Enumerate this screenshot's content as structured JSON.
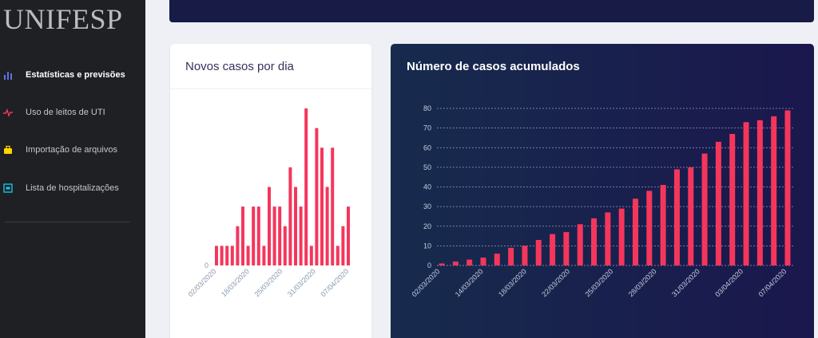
{
  "sidebar": {
    "brand": "UNIFESP",
    "items": [
      {
        "label": "Estatísticas e previsões",
        "icon": "bar-chart-icon",
        "color": "#5e72e4",
        "active": true
      },
      {
        "label": "Uso de leitos de UTI",
        "icon": "pulse-icon",
        "color": "#f5365c",
        "active": false
      },
      {
        "label": "Importação de arquivos",
        "icon": "briefcase-icon",
        "color": "#ffd600",
        "active": false
      },
      {
        "label": "Lista de hospitalizações",
        "icon": "list-icon",
        "color": "#11cdef",
        "active": false
      }
    ]
  },
  "colors": {
    "bar": "#f5365c",
    "dark_card": "#172b4d"
  },
  "charts": {
    "daily": {
      "title": "Novos casos por dia",
      "chart_data": {
        "type": "bar",
        "categories_shown": [
          "02/03/2020",
          "18/03/2020",
          "25/03/2020",
          "31/03/2020",
          "07/04/2020"
        ],
        "values": [
          1,
          1,
          1,
          1,
          2,
          3,
          1,
          3,
          3,
          1,
          4,
          3,
          3,
          2,
          5,
          4,
          3,
          8,
          1,
          7,
          6,
          4,
          6,
          1,
          2,
          3
        ],
        "ylim": [
          0,
          8
        ],
        "y_ticks": [
          "0"
        ]
      }
    },
    "cumulative": {
      "title": "Número de casos acumulados",
      "chart_data": {
        "type": "bar",
        "categories_shown": [
          "02/03/2020",
          "14/03/2020",
          "18/03/2020",
          "22/03/2020",
          "25/03/2020",
          "28/03/2020",
          "31/03/2020",
          "03/04/2020",
          "07/04/2020"
        ],
        "values": [
          1,
          2,
          3,
          4,
          6,
          9,
          10,
          13,
          16,
          17,
          21,
          24,
          27,
          29,
          34,
          38,
          41,
          49,
          50,
          57,
          63,
          67,
          73,
          74,
          76,
          79
        ],
        "ylim": [
          0,
          80
        ],
        "y_ticks": [
          "0",
          "10",
          "20",
          "30",
          "40",
          "50",
          "60",
          "70",
          "80"
        ],
        "grid": true
      }
    }
  }
}
